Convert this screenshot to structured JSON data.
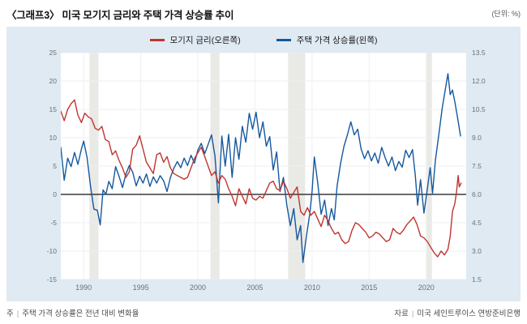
{
  "header": {
    "title": "〈그래프3〉 미국 모기지 금리와 주택 가격 상승률 추이",
    "unit": "(단위: %)"
  },
  "legend": [
    {
      "label": "모기지 금리(오른쪽)",
      "color": "#c0342f"
    },
    {
      "label": "주택 가격 상승률(왼쪽)",
      "color": "#15589e"
    }
  ],
  "footer": {
    "note_label": "주",
    "note_text": "주택 가격 상승률은 전년 대비 변화율",
    "source_label": "자료",
    "source_text": "미국 세인트루이스 연방준비은행"
  },
  "colors": {
    "panel_bg": "#dfeaf3",
    "plot_bg": "#ffffff",
    "recession_band": "#e9e9e6",
    "gridline": "#edf0f2",
    "zero_line": "#111111",
    "mortgage_line": "#c0342f",
    "house_price_line": "#15589e"
  },
  "chart_data": {
    "type": "line",
    "title": "미국 모기지 금리와 주택 가격 상승률 추이",
    "x_axis": {
      "range": [
        1988.0,
        2023.5
      ],
      "ticks": [
        1990,
        1995,
        2000,
        2005,
        2010,
        2015,
        2020
      ]
    },
    "left_axis": {
      "label": "주택 가격 상승률(%)",
      "range": [
        -15,
        25
      ],
      "tick_values": [
        25,
        20,
        15,
        10,
        5,
        0,
        -5,
        -10,
        -15
      ],
      "tick_labels": [
        "25",
        "20",
        "15",
        "10",
        "5",
        "0",
        "-5",
        "-10",
        "-15"
      ]
    },
    "right_axis": {
      "label": "모기지 금리(%)",
      "range": [
        1.5,
        13.5
      ],
      "tick_values": [
        13.5,
        12.0,
        10.5,
        9.0,
        7.5,
        6.0,
        4.5,
        3.0,
        1.5
      ],
      "tick_labels": [
        "13.5",
        "12.0",
        "10.5",
        "9.0",
        "7.5",
        "6.0",
        "4.5",
        "3.0",
        "1.5"
      ]
    },
    "zero_line_left_value": 0,
    "grid": true,
    "legend_position": "top",
    "recession_bands": [
      [
        1990.5,
        1991.3
      ],
      [
        2001.1,
        2001.9
      ],
      [
        2007.9,
        2009.4
      ],
      [
        2020.05,
        2020.5
      ]
    ],
    "series": [
      {
        "name": "주택 가격 상승률(왼쪽)",
        "axis": "left",
        "color": "#15589e",
        "points": [
          [
            1988.0,
            8.3
          ],
          [
            1988.3,
            2.5
          ],
          [
            1988.6,
            6.4
          ],
          [
            1988.9,
            4.9
          ],
          [
            1989.2,
            7.4
          ],
          [
            1989.5,
            5.3
          ],
          [
            1989.8,
            8.0
          ],
          [
            1990.0,
            9.4
          ],
          [
            1990.3,
            6.5
          ],
          [
            1990.6,
            1.5
          ],
          [
            1990.9,
            -2.6
          ],
          [
            1991.2,
            -2.8
          ],
          [
            1991.45,
            -5.4
          ],
          [
            1991.7,
            0.8
          ],
          [
            1991.95,
            0.0
          ],
          [
            1992.2,
            2.3
          ],
          [
            1992.5,
            1.0
          ],
          [
            1992.8,
            4.9
          ],
          [
            1993.1,
            3.2
          ],
          [
            1993.4,
            1.2
          ],
          [
            1993.7,
            3.6
          ],
          [
            1994.0,
            5.1
          ],
          [
            1994.3,
            3.9
          ],
          [
            1994.6,
            1.5
          ],
          [
            1994.9,
            3.2
          ],
          [
            1995.2,
            2.0
          ],
          [
            1995.5,
            3.6
          ],
          [
            1995.8,
            1.4
          ],
          [
            1996.1,
            3.1
          ],
          [
            1996.4,
            2.0
          ],
          [
            1996.7,
            3.3
          ],
          [
            1997.0,
            2.4
          ],
          [
            1997.3,
            0.5
          ],
          [
            1997.6,
            3.0
          ],
          [
            1997.9,
            4.6
          ],
          [
            1998.2,
            5.8
          ],
          [
            1998.5,
            4.7
          ],
          [
            1998.8,
            6.4
          ],
          [
            1999.1,
            5.1
          ],
          [
            1999.4,
            6.9
          ],
          [
            1999.7,
            5.5
          ],
          [
            2000.0,
            7.8
          ],
          [
            2000.3,
            9.0
          ],
          [
            2000.6,
            7.2
          ],
          [
            2000.9,
            8.8
          ],
          [
            2001.2,
            10.5
          ],
          [
            2001.5,
            6.8
          ],
          [
            2001.8,
            -1.5
          ],
          [
            2002.1,
            10.3
          ],
          [
            2002.4,
            5.0
          ],
          [
            2002.7,
            10.6
          ],
          [
            2003.0,
            3.0
          ],
          [
            2003.3,
            10.0
          ],
          [
            2003.6,
            6.2
          ],
          [
            2003.9,
            12.0
          ],
          [
            2004.2,
            9.2
          ],
          [
            2004.5,
            14.3
          ],
          [
            2004.8,
            11.5
          ],
          [
            2005.1,
            14.5
          ],
          [
            2005.4,
            10.0
          ],
          [
            2005.7,
            12.8
          ],
          [
            2006.0,
            8.5
          ],
          [
            2006.3,
            10.2
          ],
          [
            2006.6,
            4.3
          ],
          [
            2006.9,
            7.5
          ],
          [
            2007.2,
            0.5
          ],
          [
            2007.5,
            3.0
          ],
          [
            2007.8,
            -2.0
          ],
          [
            2008.1,
            -5.5
          ],
          [
            2008.4,
            -2.5
          ],
          [
            2008.7,
            -8.0
          ],
          [
            2009.0,
            -5.5
          ],
          [
            2009.2,
            -12.0
          ],
          [
            2009.5,
            -7.5
          ],
          [
            2009.8,
            -3.5
          ],
          [
            2010.0,
            0.5
          ],
          [
            2010.2,
            6.6
          ],
          [
            2010.5,
            2.0
          ],
          [
            2010.8,
            -3.5
          ],
          [
            2011.1,
            -1.0
          ],
          [
            2011.4,
            -5.5
          ],
          [
            2011.7,
            -2.5
          ],
          [
            2011.95,
            -4.5
          ],
          [
            2012.2,
            1.5
          ],
          [
            2012.5,
            5.5
          ],
          [
            2012.8,
            8.5
          ],
          [
            2013.1,
            10.5
          ],
          [
            2013.4,
            12.8
          ],
          [
            2013.7,
            10.5
          ],
          [
            2014.0,
            11.5
          ],
          [
            2014.3,
            8.0
          ],
          [
            2014.6,
            6.3
          ],
          [
            2014.9,
            7.7
          ],
          [
            2015.2,
            5.9
          ],
          [
            2015.5,
            7.3
          ],
          [
            2015.8,
            5.5
          ],
          [
            2016.1,
            8.3
          ],
          [
            2016.4,
            6.5
          ],
          [
            2016.7,
            5.0
          ],
          [
            2017.0,
            6.6
          ],
          [
            2017.3,
            4.2
          ],
          [
            2017.6,
            5.8
          ],
          [
            2017.9,
            4.8
          ],
          [
            2018.2,
            7.8
          ],
          [
            2018.5,
            6.5
          ],
          [
            2018.8,
            7.9
          ],
          [
            2019.05,
            3.2
          ],
          [
            2019.25,
            -1.9
          ],
          [
            2019.5,
            2.6
          ],
          [
            2019.8,
            -3.3
          ],
          [
            2020.1,
            1.0
          ],
          [
            2020.35,
            4.7
          ],
          [
            2020.55,
            0.2
          ],
          [
            2020.8,
            6.0
          ],
          [
            2021.1,
            10.5
          ],
          [
            2021.4,
            15.2
          ],
          [
            2021.9,
            21.3
          ],
          [
            2022.1,
            17.6
          ],
          [
            2022.3,
            18.4
          ],
          [
            2022.5,
            16.4
          ],
          [
            2022.75,
            13.5
          ],
          [
            2023.0,
            10.3
          ]
        ]
      },
      {
        "name": "모기지 금리(오른쪽)",
        "axis": "right",
        "color": "#c0342f",
        "points": [
          [
            1988.0,
            10.4
          ],
          [
            1988.3,
            9.9
          ],
          [
            1988.6,
            10.5
          ],
          [
            1988.9,
            10.8
          ],
          [
            1989.2,
            11.0
          ],
          [
            1989.5,
            10.2
          ],
          [
            1989.8,
            9.8
          ],
          [
            1990.1,
            10.3
          ],
          [
            1990.4,
            10.1
          ],
          [
            1990.7,
            10.0
          ],
          [
            1991.0,
            9.5
          ],
          [
            1991.3,
            9.4
          ],
          [
            1991.6,
            9.6
          ],
          [
            1991.9,
            8.9
          ],
          [
            1992.2,
            8.8
          ],
          [
            1992.5,
            8.1
          ],
          [
            1992.8,
            8.3
          ],
          [
            1993.1,
            7.8
          ],
          [
            1993.4,
            7.4
          ],
          [
            1993.7,
            6.9
          ],
          [
            1994.0,
            7.2
          ],
          [
            1994.3,
            8.4
          ],
          [
            1994.6,
            8.6
          ],
          [
            1994.9,
            9.1
          ],
          [
            1995.2,
            8.4
          ],
          [
            1995.5,
            7.7
          ],
          [
            1995.8,
            7.4
          ],
          [
            1996.1,
            7.1
          ],
          [
            1996.4,
            8.1
          ],
          [
            1996.7,
            8.2
          ],
          [
            1997.0,
            7.7
          ],
          [
            1997.3,
            8.0
          ],
          [
            1997.6,
            7.4
          ],
          [
            1997.9,
            7.1
          ],
          [
            1998.2,
            7.0
          ],
          [
            1998.5,
            6.9
          ],
          [
            1998.8,
            6.8
          ],
          [
            1999.1,
            6.9
          ],
          [
            1999.4,
            7.4
          ],
          [
            1999.7,
            7.9
          ],
          [
            2000.0,
            8.2
          ],
          [
            2000.3,
            8.5
          ],
          [
            2000.6,
            8.0
          ],
          [
            2000.9,
            7.5
          ],
          [
            2001.2,
            7.0
          ],
          [
            2001.5,
            7.2
          ],
          [
            2001.8,
            6.6
          ],
          [
            2002.1,
            7.0
          ],
          [
            2002.4,
            6.8
          ],
          [
            2002.7,
            6.3
          ],
          [
            2003.0,
            5.9
          ],
          [
            2003.3,
            5.4
          ],
          [
            2003.6,
            6.3
          ],
          [
            2003.9,
            5.9
          ],
          [
            2004.2,
            5.5
          ],
          [
            2004.5,
            6.3
          ],
          [
            2004.8,
            5.8
          ],
          [
            2005.1,
            5.7
          ],
          [
            2005.4,
            5.9
          ],
          [
            2005.7,
            5.8
          ],
          [
            2006.0,
            6.2
          ],
          [
            2006.3,
            6.6
          ],
          [
            2006.6,
            6.7
          ],
          [
            2006.9,
            6.3
          ],
          [
            2007.2,
            6.2
          ],
          [
            2007.5,
            6.7
          ],
          [
            2007.8,
            6.3
          ],
          [
            2008.1,
            5.8
          ],
          [
            2008.4,
            6.1
          ],
          [
            2008.7,
            6.4
          ],
          [
            2009.0,
            5.1
          ],
          [
            2009.3,
            4.9
          ],
          [
            2009.6,
            5.3
          ],
          [
            2009.9,
            4.9
          ],
          [
            2010.2,
            5.1
          ],
          [
            2010.5,
            4.7
          ],
          [
            2010.8,
            4.3
          ],
          [
            2011.1,
            4.9
          ],
          [
            2011.4,
            4.6
          ],
          [
            2011.7,
            4.2
          ],
          [
            2012.0,
            3.9
          ],
          [
            2012.3,
            4.0
          ],
          [
            2012.6,
            3.6
          ],
          [
            2012.9,
            3.4
          ],
          [
            2013.2,
            3.5
          ],
          [
            2013.5,
            4.1
          ],
          [
            2013.8,
            4.5
          ],
          [
            2014.1,
            4.4
          ],
          [
            2014.4,
            4.2
          ],
          [
            2014.7,
            4.0
          ],
          [
            2015.0,
            3.7
          ],
          [
            2015.3,
            3.8
          ],
          [
            2015.6,
            4.0
          ],
          [
            2015.9,
            3.9
          ],
          [
            2016.2,
            3.7
          ],
          [
            2016.5,
            3.5
          ],
          [
            2016.8,
            3.6
          ],
          [
            2017.1,
            4.2
          ],
          [
            2017.4,
            4.0
          ],
          [
            2017.7,
            3.9
          ],
          [
            2018.0,
            4.1
          ],
          [
            2018.3,
            4.4
          ],
          [
            2018.6,
            4.6
          ],
          [
            2018.9,
            4.8
          ],
          [
            2019.2,
            4.4
          ],
          [
            2019.5,
            3.8
          ],
          [
            2019.8,
            3.7
          ],
          [
            2020.1,
            3.5
          ],
          [
            2020.4,
            3.2
          ],
          [
            2020.7,
            2.9
          ],
          [
            2021.0,
            2.7
          ],
          [
            2021.3,
            3.0
          ],
          [
            2021.6,
            2.8
          ],
          [
            2021.9,
            3.1
          ],
          [
            2022.1,
            3.8
          ],
          [
            2022.3,
            5.1
          ],
          [
            2022.5,
            5.5
          ],
          [
            2022.65,
            6.1
          ],
          [
            2022.8,
            7.0
          ],
          [
            2022.9,
            6.4
          ],
          [
            2023.05,
            6.6
          ]
        ]
      }
    ]
  }
}
